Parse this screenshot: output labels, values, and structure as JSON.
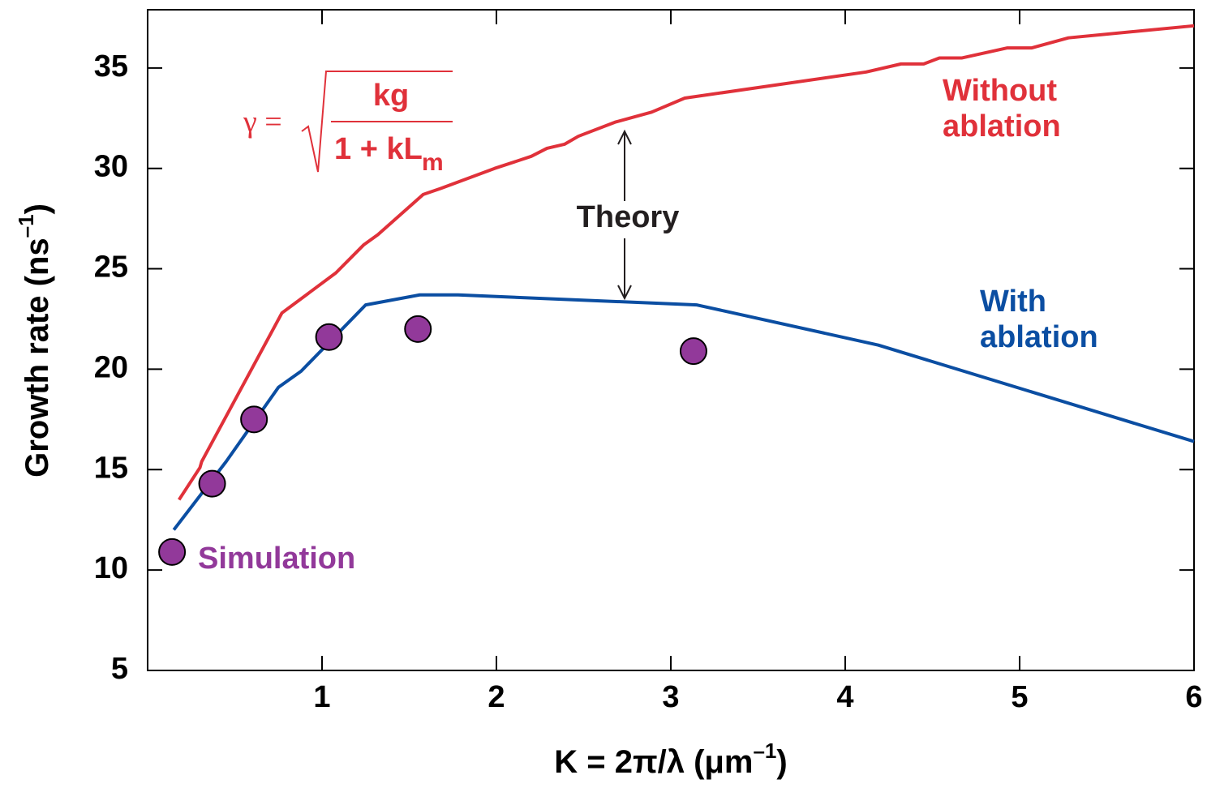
{
  "chart_data": {
    "type": "line",
    "x_label": {
      "text": "K = 2π/λ (μm",
      "superscript": "–1",
      "close": ")"
    },
    "y_label": {
      "text": "Growth rate (ns",
      "superscript": "–1",
      "close": ")"
    },
    "xlim": [
      0,
      6
    ],
    "xticks": [
      1,
      2,
      3,
      4,
      5,
      6
    ],
    "ylim": [
      5,
      37.9
    ],
    "yticks": [
      5,
      10,
      15,
      20,
      25,
      30,
      35
    ],
    "series": [
      {
        "name": "Without ablation",
        "type": "line",
        "color": "#e0313a",
        "x": [
          0.18,
          0.3,
          0.31,
          0.77,
          1.08,
          1.24,
          1.32,
          1.58,
          1.68,
          1.99,
          2.2,
          2.29,
          2.39,
          2.47,
          2.68,
          2.89,
          3.08,
          4.12,
          4.32,
          4.45,
          4.54,
          4.67,
          4.93,
          5.07,
          5.28,
          6.0
        ],
        "values": [
          13.5,
          15.1,
          15.4,
          22.8,
          24.8,
          26.2,
          26.7,
          28.7,
          29.0,
          30.0,
          30.6,
          31.0,
          31.2,
          31.6,
          32.3,
          32.8,
          33.5,
          34.8,
          35.2,
          35.2,
          35.5,
          35.5,
          36.0,
          36.0,
          36.5,
          37.1
        ]
      },
      {
        "name": "With ablation",
        "type": "line",
        "color": "#0b4ea2",
        "x": [
          0.15,
          0.45,
          0.75,
          0.88,
          1.25,
          1.56,
          1.78,
          3.15,
          4.19,
          6.0
        ],
        "values": [
          12.0,
          15.4,
          19.1,
          19.9,
          23.2,
          23.7,
          23.7,
          23.2,
          21.2,
          16.4
        ]
      },
      {
        "name": "Simulation",
        "type": "scatter",
        "color": "#92399a",
        "x": [
          0.14,
          0.37,
          0.61,
          1.04,
          1.55,
          3.13
        ],
        "values": [
          10.9,
          14.3,
          17.5,
          21.6,
          22.0,
          20.9
        ]
      }
    ],
    "annotations": {
      "theory": "Theory",
      "formula": {
        "lhs": "γ =",
        "numerator": "kg",
        "denominator": "1 + kL",
        "subscript": "m"
      }
    }
  }
}
